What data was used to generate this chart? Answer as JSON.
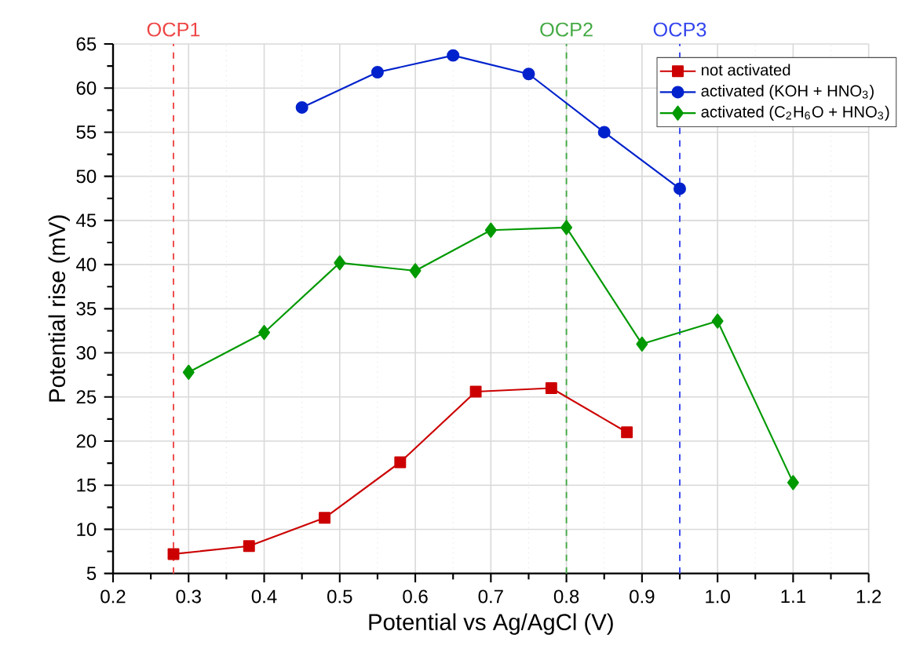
{
  "chart_data": {
    "type": "line",
    "xlabel": "Potential vs Ag/AgCl (V)",
    "ylabel": "Potential rise (mV)",
    "xlim": [
      0.2,
      1.2
    ],
    "xticks": [
      0.2,
      0.3,
      0.4,
      0.5,
      0.6,
      0.7,
      0.8,
      0.9,
      {
        "value": 1.0,
        "label": "1.0"
      },
      1.1,
      1.2
    ],
    "ylim": [
      5,
      65
    ],
    "yticks": [
      5,
      10,
      15,
      20,
      25,
      30,
      35,
      40,
      45,
      50,
      55,
      60,
      65
    ],
    "grid": true,
    "legend": "top right",
    "line_style": "solid",
    "series": [
      {
        "name": "not activated",
        "color": "#cc0000",
        "marker": "square",
        "x": [
          0.28,
          0.38,
          0.48,
          0.58,
          0.68,
          0.78,
          0.88
        ],
        "values": [
          7.2,
          8.1,
          11.3,
          17.6,
          25.6,
          26.0,
          21.0
        ]
      },
      {
        "name": "activated (KOH + HNO$_{3}$)",
        "color": "#0022cc",
        "marker": "circle",
        "x": [
          0.45,
          0.55,
          0.65,
          0.75,
          0.85,
          0.95
        ],
        "values": [
          57.8,
          61.8,
          63.7,
          61.6,
          55.0,
          48.6
        ]
      },
      {
        "name": "activated (C$_{2}$H$_{6}$O + HNO$_{3}$)",
        "color": "#009900",
        "marker": "diamond",
        "x": [
          0.3,
          0.4,
          0.5,
          0.6,
          0.7,
          0.8,
          0.9,
          1.0,
          1.1
        ],
        "values": [
          27.8,
          32.3,
          40.2,
          39.3,
          43.9,
          44.2,
          31.0,
          33.6,
          15.3
        ]
      }
    ],
    "ref_lines": [
      {
        "axis": "x",
        "value": 0.28,
        "label": "OCP1",
        "color": "#ee4444",
        "line_style": "dashed"
      },
      {
        "axis": "x",
        "value": 0.8,
        "label": "OCP2",
        "color": "#44aa44",
        "line_style": "dashed"
      },
      {
        "axis": "x",
        "value": 0.95,
        "label": "OCP3",
        "color": "#3344ee",
        "line_style": "dashed"
      }
    ]
  }
}
